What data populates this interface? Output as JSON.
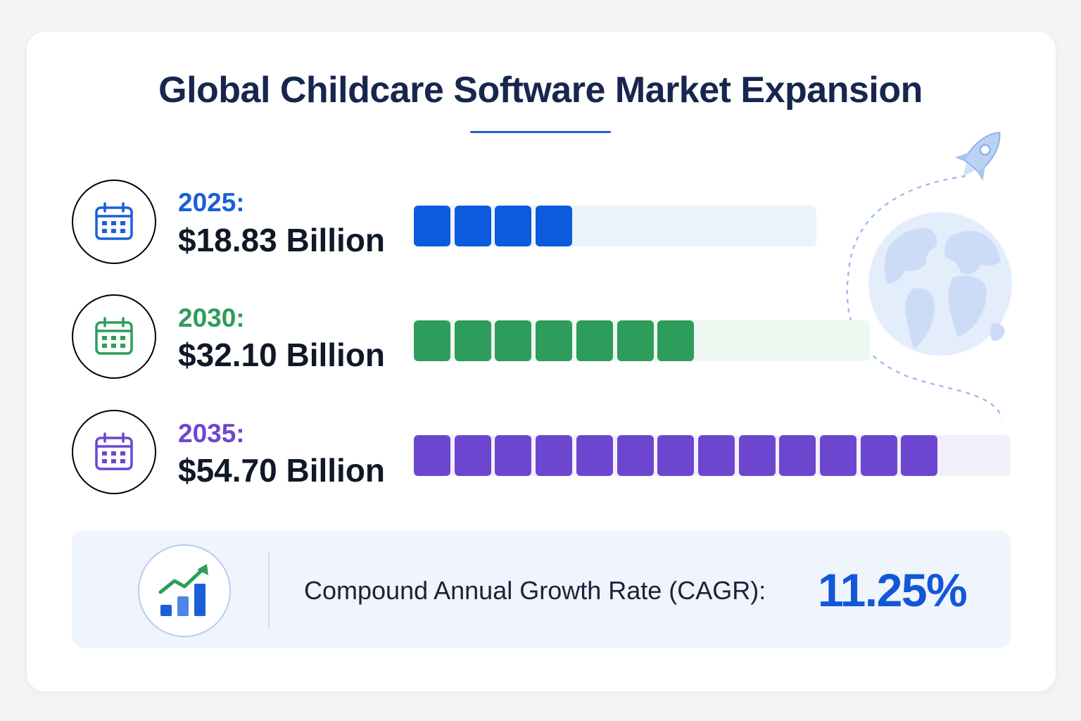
{
  "chart_data": {
    "type": "bar",
    "title": "Global Childcare Software Market Expansion",
    "categories": [
      "2025",
      "2030",
      "2035"
    ],
    "series": [
      {
        "values": [
          18.83,
          32.1,
          54.7
        ]
      }
    ],
    "rows": [
      {
        "year": "2025:",
        "value_text": "$18.83 Billion",
        "value": 18.83,
        "filled_blocks": 4,
        "color": "#0b5bdc",
        "track_color": "#edf3fd",
        "icon_border": "#1a5fd8"
      },
      {
        "year": "2030:",
        "value_text": "$32.10 Billion",
        "value": 32.1,
        "filled_blocks": 7,
        "color": "#2e9d5b",
        "track_color": "#eef8f1",
        "icon_border": "#33a463"
      },
      {
        "year": "2035:",
        "value_text": "$54.70 Billion",
        "value": 54.7,
        "filled_blocks": 13,
        "color": "#6d46d0",
        "track_color": "#f3f0fc",
        "icon_border": "#7650d4"
      }
    ],
    "cagr": {
      "label": "Compound Annual Growth Rate (CAGR):",
      "value": "11.25%"
    }
  },
  "icons": {
    "row_icon": "calendar-icon",
    "cagr_icon": "growth-chart-icon",
    "decor": [
      "rocket-icon",
      "globe-icon"
    ]
  },
  "colors": {
    "title": "#16264f",
    "accent": "#1257d8"
  }
}
